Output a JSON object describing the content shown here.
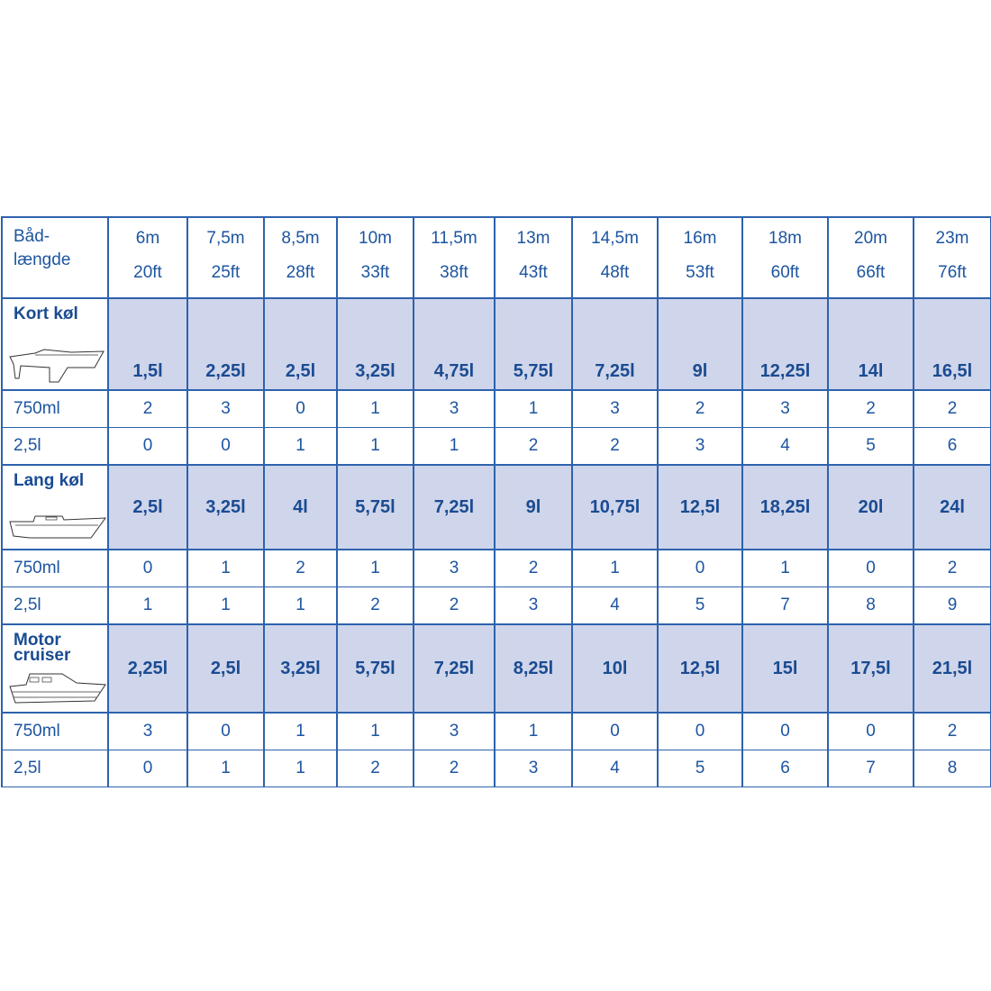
{
  "header": {
    "label_line1": "Båd-",
    "label_line2": "længde",
    "columns": [
      {
        "m": "6m",
        "ft": "20ft"
      },
      {
        "m": "7,5m",
        "ft": "25ft"
      },
      {
        "m": "8,5m",
        "ft": "28ft"
      },
      {
        "m": "10m",
        "ft": "33ft"
      },
      {
        "m": "11,5m",
        "ft": "38ft"
      },
      {
        "m": "13m",
        "ft": "43ft"
      },
      {
        "m": "14,5m",
        "ft": "48ft"
      },
      {
        "m": "16m",
        "ft": "53ft"
      },
      {
        "m": "18m",
        "ft": "60ft"
      },
      {
        "m": "20m",
        "ft": "66ft"
      },
      {
        "m": "23m",
        "ft": "76ft"
      }
    ]
  },
  "sections": [
    {
      "name": "Kort køl",
      "icon": "sailboat-short-keel-icon",
      "totals": [
        "1,5l",
        "2,25l",
        "2,5l",
        "3,25l",
        "4,75l",
        "5,75l",
        "7,25l",
        "9l",
        "12,25l",
        "14l",
        "16,5l"
      ],
      "rows": [
        {
          "label": "750ml",
          "values": [
            "2",
            "3",
            "0",
            "1",
            "3",
            "1",
            "3",
            "2",
            "3",
            "2",
            "2"
          ]
        },
        {
          "label": "2,5l",
          "values": [
            "0",
            "0",
            "1",
            "1",
            "1",
            "2",
            "2",
            "3",
            "4",
            "5",
            "6"
          ]
        }
      ]
    },
    {
      "name": "Lang køl",
      "icon": "sailboat-long-keel-icon",
      "totals": [
        "2,5l",
        "3,25l",
        "4l",
        "5,75l",
        "7,25l",
        "9l",
        "10,75l",
        "12,5l",
        "18,25l",
        "20l",
        "24l"
      ],
      "rows": [
        {
          "label": "750ml",
          "values": [
            "0",
            "1",
            "2",
            "1",
            "3",
            "2",
            "1",
            "0",
            "1",
            "0",
            "2"
          ]
        },
        {
          "label": "2,5l",
          "values": [
            "1",
            "1",
            "1",
            "2",
            "2",
            "3",
            "4",
            "5",
            "7",
            "8",
            "9"
          ]
        }
      ]
    },
    {
      "name_line1": "Motor",
      "name_line2": "cruiser",
      "icon": "motor-cruiser-icon",
      "totals": [
        "2,25l",
        "2,5l",
        "3,25l",
        "5,75l",
        "7,25l",
        "8,25l",
        "10l",
        "12,5l",
        "15l",
        "17,5l",
        "21,5l"
      ],
      "rows": [
        {
          "label": "750ml",
          "values": [
            "3",
            "0",
            "1",
            "1",
            "3",
            "1",
            "0",
            "0",
            "0",
            "0",
            "2"
          ]
        },
        {
          "label": "2,5l",
          "values": [
            "0",
            "1",
            "1",
            "2",
            "2",
            "3",
            "4",
            "5",
            "6",
            "7",
            "8"
          ]
        }
      ]
    }
  ],
  "colors": {
    "text": "#1d55a0",
    "border": "#2d62ad",
    "highlight": "#cfd5ea"
  }
}
